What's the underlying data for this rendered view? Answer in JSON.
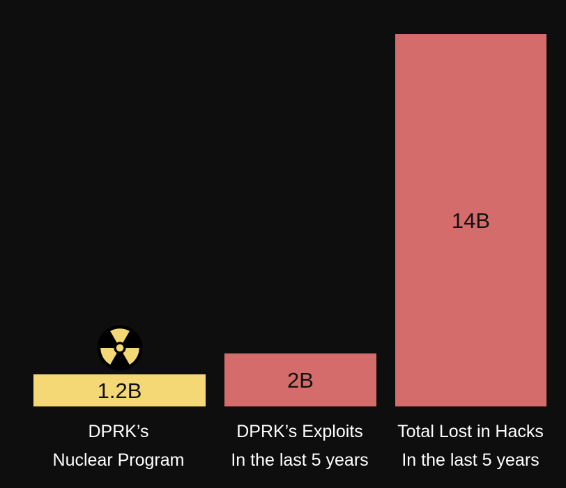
{
  "chart_data": {
    "type": "bar",
    "categories": [
      {
        "line1": "DPRK’s",
        "line2": "Nuclear Program"
      },
      {
        "line1": "DPRK’s Exploits",
        "line2": "In the last 5 years"
      },
      {
        "line1": "Total Lost in Hacks",
        "line2": "In the last 5 years"
      }
    ],
    "values": [
      1.2,
      2,
      14
    ],
    "value_labels": [
      "1.2B",
      "2B",
      "14B"
    ],
    "colors": [
      "#f5d876",
      "#d36c6a",
      "#d36c6a"
    ],
    "icons": [
      "radiation-icon",
      null,
      null
    ],
    "unit": "billions",
    "title": "",
    "xlabel": "",
    "ylabel": "",
    "grid": false
  },
  "theme": {
    "background": "#0e0e0e",
    "text": "#ffffff",
    "icon_fill": "#f5d876",
    "icon_bg": "#000000"
  }
}
